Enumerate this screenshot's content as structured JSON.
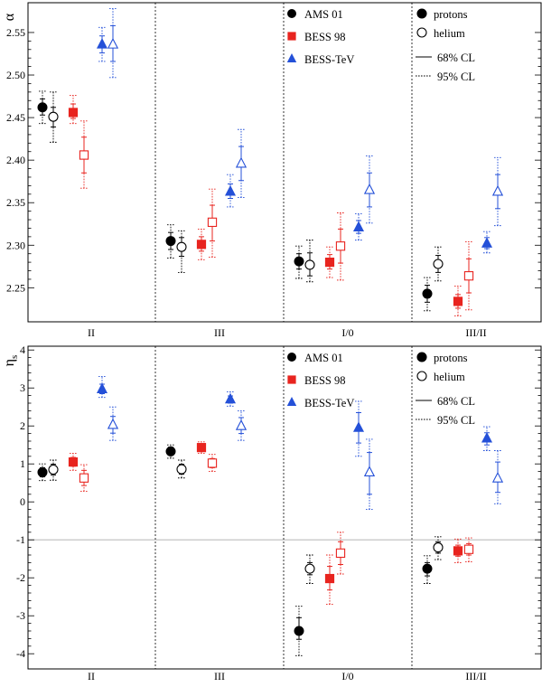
{
  "chart_data": [
    {
      "type": "scatter",
      "ylabel": "α",
      "ylim": [
        2.21,
        2.585
      ],
      "yticks": [
        2.25,
        2.3,
        2.35,
        2.4,
        2.45,
        2.5,
        2.55
      ],
      "ytick_labels": [
        "2.25",
        "2.30",
        "2.35",
        "2.40",
        "2.45",
        "2.50",
        "2.55"
      ],
      "categories": [
        "II",
        "III",
        "I/0",
        "III/II"
      ],
      "experiments": [
        {
          "name": "AMS 01",
          "color": "#000000",
          "marker": "circle"
        },
        {
          "name": "BESS 98",
          "color": "#e8241f",
          "marker": "square"
        },
        {
          "name": "BESS-TeV",
          "color": "#2450d8",
          "marker": "triangle"
        }
      ],
      "particles": [
        {
          "name": "protons",
          "filled": true
        },
        {
          "name": "helium",
          "filled": false
        }
      ],
      "errors": [
        {
          "label": "68% CL"
        },
        {
          "label": "95% CL"
        }
      ],
      "points": [
        {
          "cat": 0,
          "exp": 0,
          "prot": 0,
          "y": 2.462,
          "e68": [
            2.453,
            2.472
          ],
          "e95": [
            2.443,
            2.481
          ]
        },
        {
          "cat": 0,
          "exp": 0,
          "prot": 1,
          "y": 2.451,
          "e68": [
            2.439,
            2.462
          ],
          "e95": [
            2.421,
            2.48
          ]
        },
        {
          "cat": 0,
          "exp": 1,
          "prot": 0,
          "y": 2.456,
          "e68": [
            2.449,
            2.466
          ],
          "e95": [
            2.443,
            2.476
          ]
        },
        {
          "cat": 0,
          "exp": 1,
          "prot": 1,
          "y": 2.406,
          "e68": [
            2.385,
            2.427
          ],
          "e95": [
            2.367,
            2.446
          ]
        },
        {
          "cat": 0,
          "exp": 2,
          "prot": 0,
          "y": 2.536,
          "e68": [
            2.526,
            2.546
          ],
          "e95": [
            2.516,
            2.556
          ]
        },
        {
          "cat": 0,
          "exp": 2,
          "prot": 1,
          "y": 2.536,
          "e68": [
            2.516,
            2.558
          ],
          "e95": [
            2.497,
            2.578
          ]
        },
        {
          "cat": 1,
          "exp": 0,
          "prot": 0,
          "y": 2.305,
          "e68": [
            2.295,
            2.315
          ],
          "e95": [
            2.285,
            2.324
          ]
        },
        {
          "cat": 1,
          "exp": 0,
          "prot": 1,
          "y": 2.298,
          "e68": [
            2.287,
            2.309
          ],
          "e95": [
            2.268,
            2.317
          ]
        },
        {
          "cat": 1,
          "exp": 1,
          "prot": 0,
          "y": 2.301,
          "e68": [
            2.293,
            2.31
          ],
          "e95": [
            2.283,
            2.319
          ]
        },
        {
          "cat": 1,
          "exp": 1,
          "prot": 1,
          "y": 2.327,
          "e68": [
            2.305,
            2.347
          ],
          "e95": [
            2.286,
            2.366
          ]
        },
        {
          "cat": 1,
          "exp": 2,
          "prot": 0,
          "y": 2.363,
          "e68": [
            2.355,
            2.372
          ],
          "e95": [
            2.345,
            2.383
          ]
        },
        {
          "cat": 1,
          "exp": 2,
          "prot": 1,
          "y": 2.396,
          "e68": [
            2.376,
            2.416
          ],
          "e95": [
            2.356,
            2.436
          ]
        },
        {
          "cat": 2,
          "exp": 0,
          "prot": 0,
          "y": 2.281,
          "e68": [
            2.272,
            2.29
          ],
          "e95": [
            2.261,
            2.299
          ]
        },
        {
          "cat": 2,
          "exp": 0,
          "prot": 1,
          "y": 2.277,
          "e68": [
            2.264,
            2.291
          ],
          "e95": [
            2.257,
            2.306
          ]
        },
        {
          "cat": 2,
          "exp": 1,
          "prot": 0,
          "y": 2.28,
          "e68": [
            2.272,
            2.289
          ],
          "e95": [
            2.262,
            2.298
          ]
        },
        {
          "cat": 2,
          "exp": 1,
          "prot": 1,
          "y": 2.299,
          "e68": [
            2.279,
            2.319
          ],
          "e95": [
            2.259,
            2.338
          ]
        },
        {
          "cat": 2,
          "exp": 2,
          "prot": 0,
          "y": 2.321,
          "e68": [
            2.314,
            2.329
          ],
          "e95": [
            2.306,
            2.337
          ]
        },
        {
          "cat": 2,
          "exp": 2,
          "prot": 1,
          "y": 2.365,
          "e68": [
            2.345,
            2.385
          ],
          "e95": [
            2.326,
            2.405
          ]
        },
        {
          "cat": 3,
          "exp": 0,
          "prot": 0,
          "y": 2.243,
          "e68": [
            2.233,
            2.253
          ],
          "e95": [
            2.223,
            2.262
          ]
        },
        {
          "cat": 3,
          "exp": 0,
          "prot": 1,
          "y": 2.278,
          "e68": [
            2.268,
            2.288
          ],
          "e95": [
            2.258,
            2.298
          ]
        },
        {
          "cat": 3,
          "exp": 1,
          "prot": 0,
          "y": 2.234,
          "e68": [
            2.226,
            2.242
          ],
          "e95": [
            2.217,
            2.252
          ]
        },
        {
          "cat": 3,
          "exp": 1,
          "prot": 1,
          "y": 2.264,
          "e68": [
            2.244,
            2.284
          ],
          "e95": [
            2.224,
            2.304
          ]
        },
        {
          "cat": 3,
          "exp": 2,
          "prot": 0,
          "y": 2.302,
          "e68": [
            2.296,
            2.309
          ],
          "e95": [
            2.291,
            2.316
          ]
        },
        {
          "cat": 3,
          "exp": 2,
          "prot": 1,
          "y": 2.363,
          "e68": [
            2.343,
            2.383
          ],
          "e95": [
            2.323,
            2.403
          ]
        }
      ]
    },
    {
      "type": "scatter",
      "ylabel": "η",
      "ylabel_sub": "s",
      "ylim": [
        -4.4,
        4.1
      ],
      "yticks": [
        -4,
        -3,
        -2,
        -1,
        0,
        1,
        2,
        3,
        4
      ],
      "ytick_labels": [
        "-4",
        "-3",
        "-2",
        "-1",
        "0",
        "1",
        "2",
        "3",
        "4"
      ],
      "reference_line": -1,
      "categories": [
        "II",
        "III",
        "I/0",
        "III/II"
      ],
      "experiments": [
        {
          "name": "AMS 01",
          "color": "#000000",
          "marker": "circle"
        },
        {
          "name": "BESS 98",
          "color": "#e8241f",
          "marker": "square"
        },
        {
          "name": "BESS-TeV",
          "color": "#2450d8",
          "marker": "triangle"
        }
      ],
      "particles": [
        {
          "name": "protons",
          "filled": true
        },
        {
          "name": "helium",
          "filled": false
        }
      ],
      "errors": [
        {
          "label": "68% CL"
        },
        {
          "label": "95% CL"
        }
      ],
      "points": [
        {
          "cat": 0,
          "exp": 0,
          "prot": 0,
          "y": 0.78,
          "e68": [
            0.66,
            0.9
          ],
          "e95": [
            0.56,
            1.0
          ]
        },
        {
          "cat": 0,
          "exp": 0,
          "prot": 1,
          "y": 0.85,
          "e68": [
            0.71,
            0.99
          ],
          "e95": [
            0.57,
            1.1
          ]
        },
        {
          "cat": 0,
          "exp": 1,
          "prot": 0,
          "y": 1.05,
          "e68": [
            0.94,
            1.17
          ],
          "e95": [
            0.83,
            1.28
          ]
        },
        {
          "cat": 0,
          "exp": 1,
          "prot": 1,
          "y": 0.63,
          "e68": [
            0.43,
            0.83
          ],
          "e95": [
            0.28,
            0.98
          ]
        },
        {
          "cat": 0,
          "exp": 2,
          "prot": 0,
          "y": 2.97,
          "e68": [
            2.85,
            3.1
          ],
          "e95": [
            2.75,
            3.3
          ]
        },
        {
          "cat": 0,
          "exp": 2,
          "prot": 1,
          "y": 2.03,
          "e68": [
            1.81,
            2.25
          ],
          "e95": [
            1.62,
            2.5
          ]
        },
        {
          "cat": 1,
          "exp": 0,
          "prot": 0,
          "y": 1.33,
          "e68": [
            1.23,
            1.44
          ],
          "e95": [
            1.15,
            1.5
          ]
        },
        {
          "cat": 1,
          "exp": 0,
          "prot": 1,
          "y": 0.86,
          "e68": [
            0.73,
            0.99
          ],
          "e95": [
            0.63,
            1.1
          ]
        },
        {
          "cat": 1,
          "exp": 1,
          "prot": 0,
          "y": 1.43,
          "e68": [
            1.35,
            1.52
          ],
          "e95": [
            1.28,
            1.58
          ]
        },
        {
          "cat": 1,
          "exp": 1,
          "prot": 1,
          "y": 1.02,
          "e68": [
            0.9,
            1.14
          ],
          "e95": [
            0.8,
            1.25
          ]
        },
        {
          "cat": 1,
          "exp": 2,
          "prot": 0,
          "y": 2.7,
          "e68": [
            2.6,
            2.79
          ],
          "e95": [
            2.52,
            2.9
          ]
        },
        {
          "cat": 1,
          "exp": 2,
          "prot": 1,
          "y": 2.0,
          "e68": [
            1.8,
            2.22
          ],
          "e95": [
            1.62,
            2.4
          ]
        },
        {
          "cat": 2,
          "exp": 0,
          "prot": 0,
          "y": -3.4,
          "e68": [
            -3.62,
            -3.05
          ],
          "e95": [
            -4.05,
            -2.75
          ]
        },
        {
          "cat": 2,
          "exp": 0,
          "prot": 1,
          "y": -1.76,
          "e68": [
            -1.92,
            -1.6
          ],
          "e95": [
            -2.15,
            -1.4
          ]
        },
        {
          "cat": 2,
          "exp": 1,
          "prot": 0,
          "y": -2.02,
          "e68": [
            -2.32,
            -1.7
          ],
          "e95": [
            -2.7,
            -1.4
          ]
        },
        {
          "cat": 2,
          "exp": 1,
          "prot": 1,
          "y": -1.35,
          "e68": [
            -1.65,
            -1.05
          ],
          "e95": [
            -1.9,
            -0.8
          ]
        },
        {
          "cat": 2,
          "exp": 2,
          "prot": 0,
          "y": 1.95,
          "e68": [
            1.55,
            2.35
          ],
          "e95": [
            1.2,
            2.65
          ]
        },
        {
          "cat": 2,
          "exp": 2,
          "prot": 1,
          "y": 0.78,
          "e68": [
            0.2,
            1.3
          ],
          "e95": [
            -0.2,
            1.65
          ]
        },
        {
          "cat": 3,
          "exp": 0,
          "prot": 0,
          "y": -1.76,
          "e68": [
            -1.95,
            -1.6
          ],
          "e95": [
            -2.15,
            -1.42
          ]
        },
        {
          "cat": 3,
          "exp": 0,
          "prot": 1,
          "y": -1.2,
          "e68": [
            -1.35,
            -1.05
          ],
          "e95": [
            -1.52,
            -0.92
          ]
        },
        {
          "cat": 3,
          "exp": 1,
          "prot": 0,
          "y": -1.29,
          "e68": [
            -1.43,
            -1.14
          ],
          "e95": [
            -1.6,
            -0.98
          ]
        },
        {
          "cat": 3,
          "exp": 1,
          "prot": 1,
          "y": -1.25,
          "e68": [
            -1.4,
            -1.1
          ],
          "e95": [
            -1.58,
            -0.95
          ]
        },
        {
          "cat": 3,
          "exp": 2,
          "prot": 0,
          "y": 1.67,
          "e68": [
            1.5,
            1.82
          ],
          "e95": [
            1.35,
            1.98
          ]
        },
        {
          "cat": 3,
          "exp": 2,
          "prot": 1,
          "y": 0.62,
          "e68": [
            0.25,
            1.05
          ],
          "e95": [
            -0.05,
            1.35
          ]
        }
      ]
    }
  ]
}
